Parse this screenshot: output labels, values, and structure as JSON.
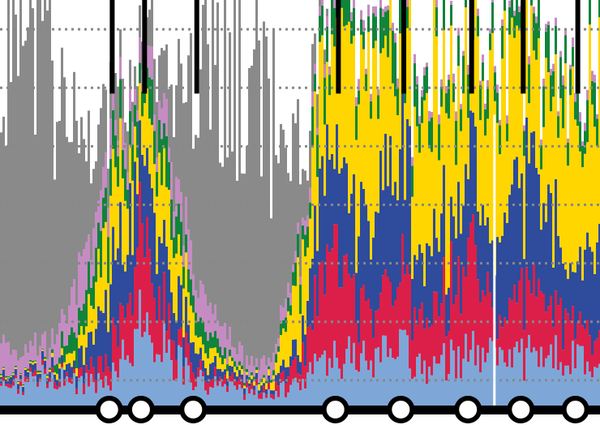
{
  "chart_data": {
    "type": "area",
    "stacked": true,
    "normalized": false,
    "title": "",
    "xlabel": "",
    "ylabel": "",
    "x_range": [
      0,
      100
    ],
    "ylim": [
      0,
      7
    ],
    "grid": {
      "horizontal": true,
      "style": "dotted",
      "color": "#888888",
      "levels": [
        0.5,
        1.5,
        2.5,
        3.5,
        4.5,
        5.5,
        6.5
      ]
    },
    "legend": "none",
    "background_color": "#ffffff",
    "series": [
      {
        "color": "#7ea7d8",
        "profile": [
          [
            0,
            0.35
          ],
          [
            8,
            0.55
          ],
          [
            13,
            0.45
          ],
          [
            18,
            0.5
          ],
          [
            23,
            1.5
          ],
          [
            28,
            1.0
          ],
          [
            33,
            0.5
          ],
          [
            40,
            0.3
          ],
          [
            45,
            0.3
          ],
          [
            50,
            0.4
          ],
          [
            55,
            1.0
          ],
          [
            60,
            0.85
          ],
          [
            67,
            1.0
          ],
          [
            71,
            0.7
          ],
          [
            78,
            1.0
          ],
          [
            83,
            0.8
          ],
          [
            89,
            0.9
          ],
          [
            95,
            0.9
          ],
          [
            100,
            0.6
          ]
        ]
      },
      {
        "color": "#dc1f48",
        "profile": [
          [
            0,
            0.05
          ],
          [
            13,
            0.1
          ],
          [
            18,
            0.4
          ],
          [
            23,
            1.5
          ],
          [
            28,
            0.6
          ],
          [
            33,
            0.15
          ],
          [
            40,
            0.1
          ],
          [
            45,
            0.1
          ],
          [
            50,
            0.3
          ],
          [
            55,
            1.9
          ],
          [
            60,
            0.85
          ],
          [
            67,
            1.3
          ],
          [
            71,
            0.8
          ],
          [
            78,
            1.7
          ],
          [
            83,
            0.6
          ],
          [
            89,
            1.2
          ],
          [
            95,
            0.7
          ],
          [
            100,
            0.4
          ]
        ]
      },
      {
        "color": "#2e4b9c",
        "profile": [
          [
            0,
            0.1
          ],
          [
            8,
            0.12
          ],
          [
            13,
            0.25
          ],
          [
            18,
            1.0
          ],
          [
            23,
            1.5
          ],
          [
            28,
            1.0
          ],
          [
            33,
            0.25
          ],
          [
            40,
            0.1
          ],
          [
            45,
            0.1
          ],
          [
            50,
            0.3
          ],
          [
            55,
            1.6
          ],
          [
            60,
            1.3
          ],
          [
            67,
            2.2
          ],
          [
            71,
            1.0
          ],
          [
            78,
            1.5
          ],
          [
            83,
            1.2
          ],
          [
            89,
            2.2
          ],
          [
            95,
            0.8
          ],
          [
            100,
            1.5
          ]
        ]
      },
      {
        "color": "#ffd600",
        "profile": [
          [
            0,
            0.02
          ],
          [
            8,
            0.03
          ],
          [
            13,
            0.2
          ],
          [
            18,
            1.2
          ],
          [
            23,
            1.05
          ],
          [
            28,
            1.0
          ],
          [
            33,
            0.3
          ],
          [
            40,
            0.08
          ],
          [
            45,
            0.08
          ],
          [
            50,
            1.4
          ],
          [
            55,
            1.7
          ],
          [
            60,
            2.7
          ],
          [
            67,
            1.4
          ],
          [
            71,
            3.1
          ],
          [
            78,
            1.8
          ],
          [
            83,
            2.8
          ],
          [
            89,
            1.5
          ],
          [
            95,
            3.1
          ],
          [
            100,
            2.5
          ]
        ]
      },
      {
        "color": "#10843a",
        "profile": [
          [
            0,
            0.02
          ],
          [
            8,
            0.03
          ],
          [
            13,
            0.4
          ],
          [
            18,
            0.6
          ],
          [
            23,
            0.45
          ],
          [
            28,
            0.7
          ],
          [
            33,
            0.3
          ],
          [
            40,
            0.05
          ],
          [
            45,
            0.05
          ],
          [
            50,
            0.4
          ],
          [
            55,
            0.6
          ],
          [
            60,
            0.4
          ],
          [
            67,
            0.7
          ],
          [
            71,
            0.4
          ],
          [
            78,
            0.6
          ],
          [
            83,
            0.4
          ],
          [
            89,
            0.6
          ],
          [
            95,
            0.5
          ],
          [
            100,
            0.6
          ]
        ]
      },
      {
        "color": "#c58cc3",
        "profile": [
          [
            0,
            0.45
          ],
          [
            8,
            0.3
          ],
          [
            13,
            0.7
          ],
          [
            18,
            0.5
          ],
          [
            23,
            0.3
          ],
          [
            28,
            0.5
          ],
          [
            33,
            0.5
          ],
          [
            40,
            0.25
          ],
          [
            45,
            0.25
          ],
          [
            50,
            0.2
          ],
          [
            55,
            0.15
          ],
          [
            60,
            0.15
          ],
          [
            67,
            0.12
          ],
          [
            71,
            0.12
          ],
          [
            78,
            0.12
          ],
          [
            83,
            0.12
          ],
          [
            89,
            0.12
          ],
          [
            95,
            0.12
          ],
          [
            100,
            0.12
          ]
        ]
      },
      {
        "color": "#8a8a8a",
        "profile": [
          [
            0,
            5.1
          ],
          [
            5,
            5.5
          ],
          [
            8,
            5.1
          ],
          [
            13,
            2.1
          ],
          [
            18,
            0.8
          ],
          [
            23,
            0.4
          ],
          [
            28,
            1.0
          ],
          [
            33,
            3.5
          ],
          [
            40,
            5.3
          ],
          [
            45,
            4.6
          ],
          [
            50,
            1.3
          ],
          [
            55,
            0.0
          ],
          [
            100,
            0.0
          ]
        ]
      }
    ],
    "vertical_markers": {
      "color": "#000000",
      "x": [
        18.7,
        24.1,
        32.8,
        56.4,
        67.3,
        78.6,
        87.2,
        96.3
      ],
      "top_level": 7,
      "bottom_level": 5.4
    },
    "bottom_baseline": {
      "color": "#000000"
    },
    "circle_markers": {
      "fill": "#ffffff",
      "stroke": "#000000",
      "x": [
        18.2,
        23.5,
        32.2,
        55.9,
        66.8,
        78.0,
        86.8,
        95.9
      ]
    },
    "highlight_line": {
      "x": 82.4,
      "color": "#ffffff"
    }
  }
}
